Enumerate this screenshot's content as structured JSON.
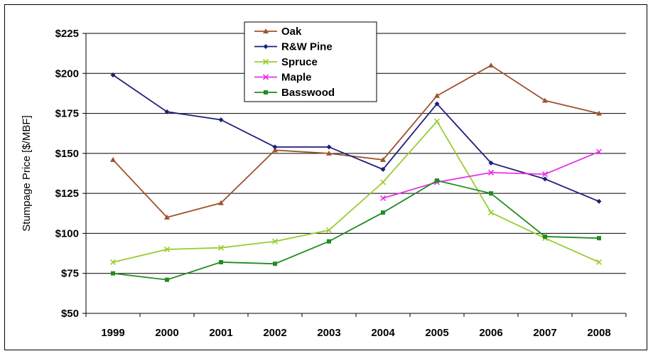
{
  "chart_data": {
    "type": "line",
    "ylabel": "Stumpage Price [$/MBF]",
    "xlabel": "",
    "title": "",
    "categories": [
      "1999",
      "2000",
      "2001",
      "2002",
      "2003",
      "2004",
      "2005",
      "2006",
      "2007",
      "2008"
    ],
    "yticks": [
      "$50",
      "$75",
      "$100",
      "$125",
      "$150",
      "$175",
      "$200",
      "$225"
    ],
    "ylim": [
      50,
      225
    ],
    "grid": true,
    "legend_position": "top-center",
    "series": [
      {
        "name": "Oak",
        "color": "#a0522d",
        "marker": "triangle",
        "values": [
          146,
          110,
          119,
          152,
          150,
          146,
          186,
          205,
          183,
          175
        ]
      },
      {
        "name": "R&W Pine",
        "color": "#1f1f7a",
        "marker": "diamond",
        "values": [
          199,
          176,
          171,
          154,
          154,
          140,
          181,
          144,
          134,
          120
        ]
      },
      {
        "name": "Spruce",
        "color": "#9acd32",
        "marker": "x",
        "values": [
          82,
          90,
          91,
          95,
          102,
          132,
          170,
          113,
          97,
          82
        ]
      },
      {
        "name": "Maple",
        "color": "#e633e6",
        "marker": "x",
        "values": [
          null,
          null,
          null,
          null,
          null,
          122,
          132,
          138,
          137,
          151
        ]
      },
      {
        "name": "Basswood",
        "color": "#228b22",
        "marker": "square",
        "values": [
          75,
          71,
          82,
          81,
          95,
          113,
          133,
          125,
          98,
          97
        ]
      }
    ]
  }
}
